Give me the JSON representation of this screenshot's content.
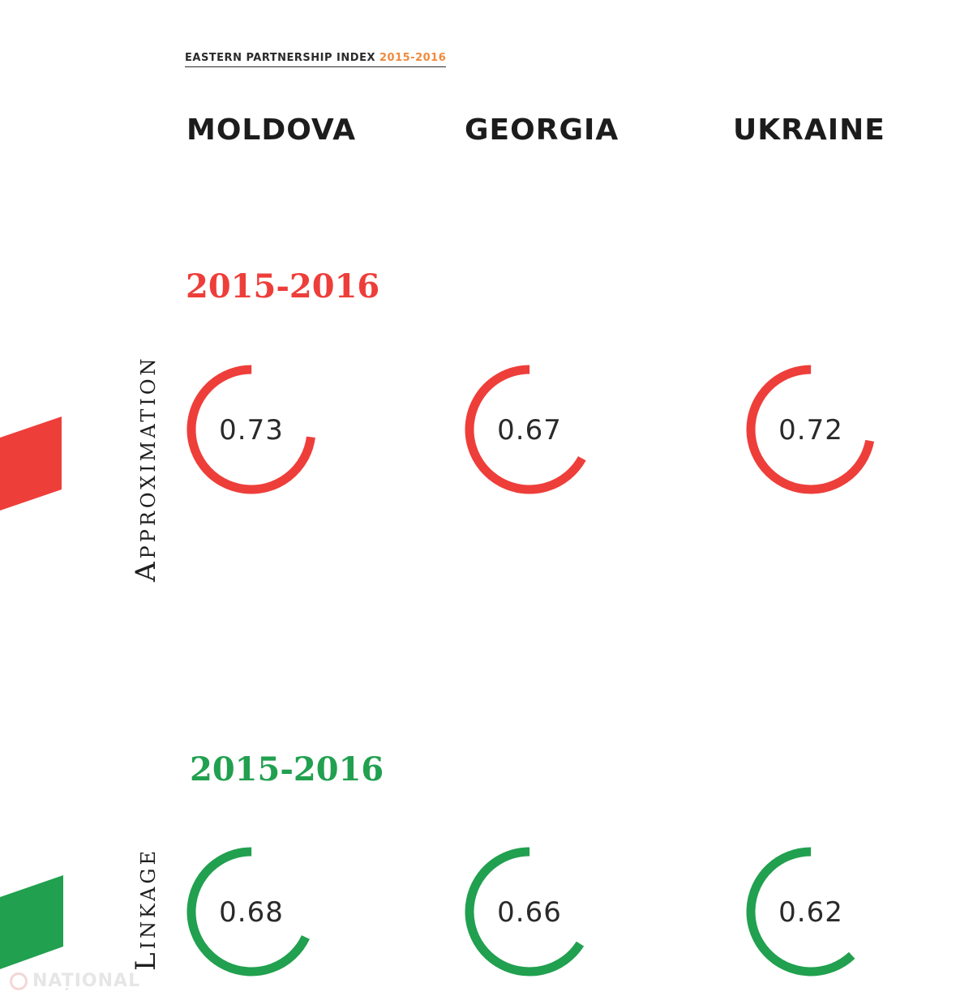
{
  "header": {
    "title": "EASTERN PARTNERSHIP INDEX",
    "years": "2015-2016"
  },
  "countries": [
    "MOLDOVA",
    "GEORGIA",
    "UKRAINE"
  ],
  "sections": [
    {
      "label": "Approximation",
      "year": "2015-2016",
      "color": "#ee3e3a"
    },
    {
      "label": "Linkage",
      "year": "2015-2016",
      "color": "#21a04f"
    }
  ],
  "watermark": "NAȚIONAL",
  "chart_data": {
    "type": "gauge",
    "categories": [
      "MOLDOVA",
      "GEORGIA",
      "UKRAINE"
    ],
    "series": [
      {
        "name": "Approximation",
        "values": [
          0.73,
          0.67,
          0.72
        ],
        "color": "#ee3e3a"
      },
      {
        "name": "Linkage",
        "values": [
          0.68,
          0.66,
          0.62
        ],
        "color": "#21a04f"
      }
    ],
    "range": [
      0,
      1
    ]
  }
}
